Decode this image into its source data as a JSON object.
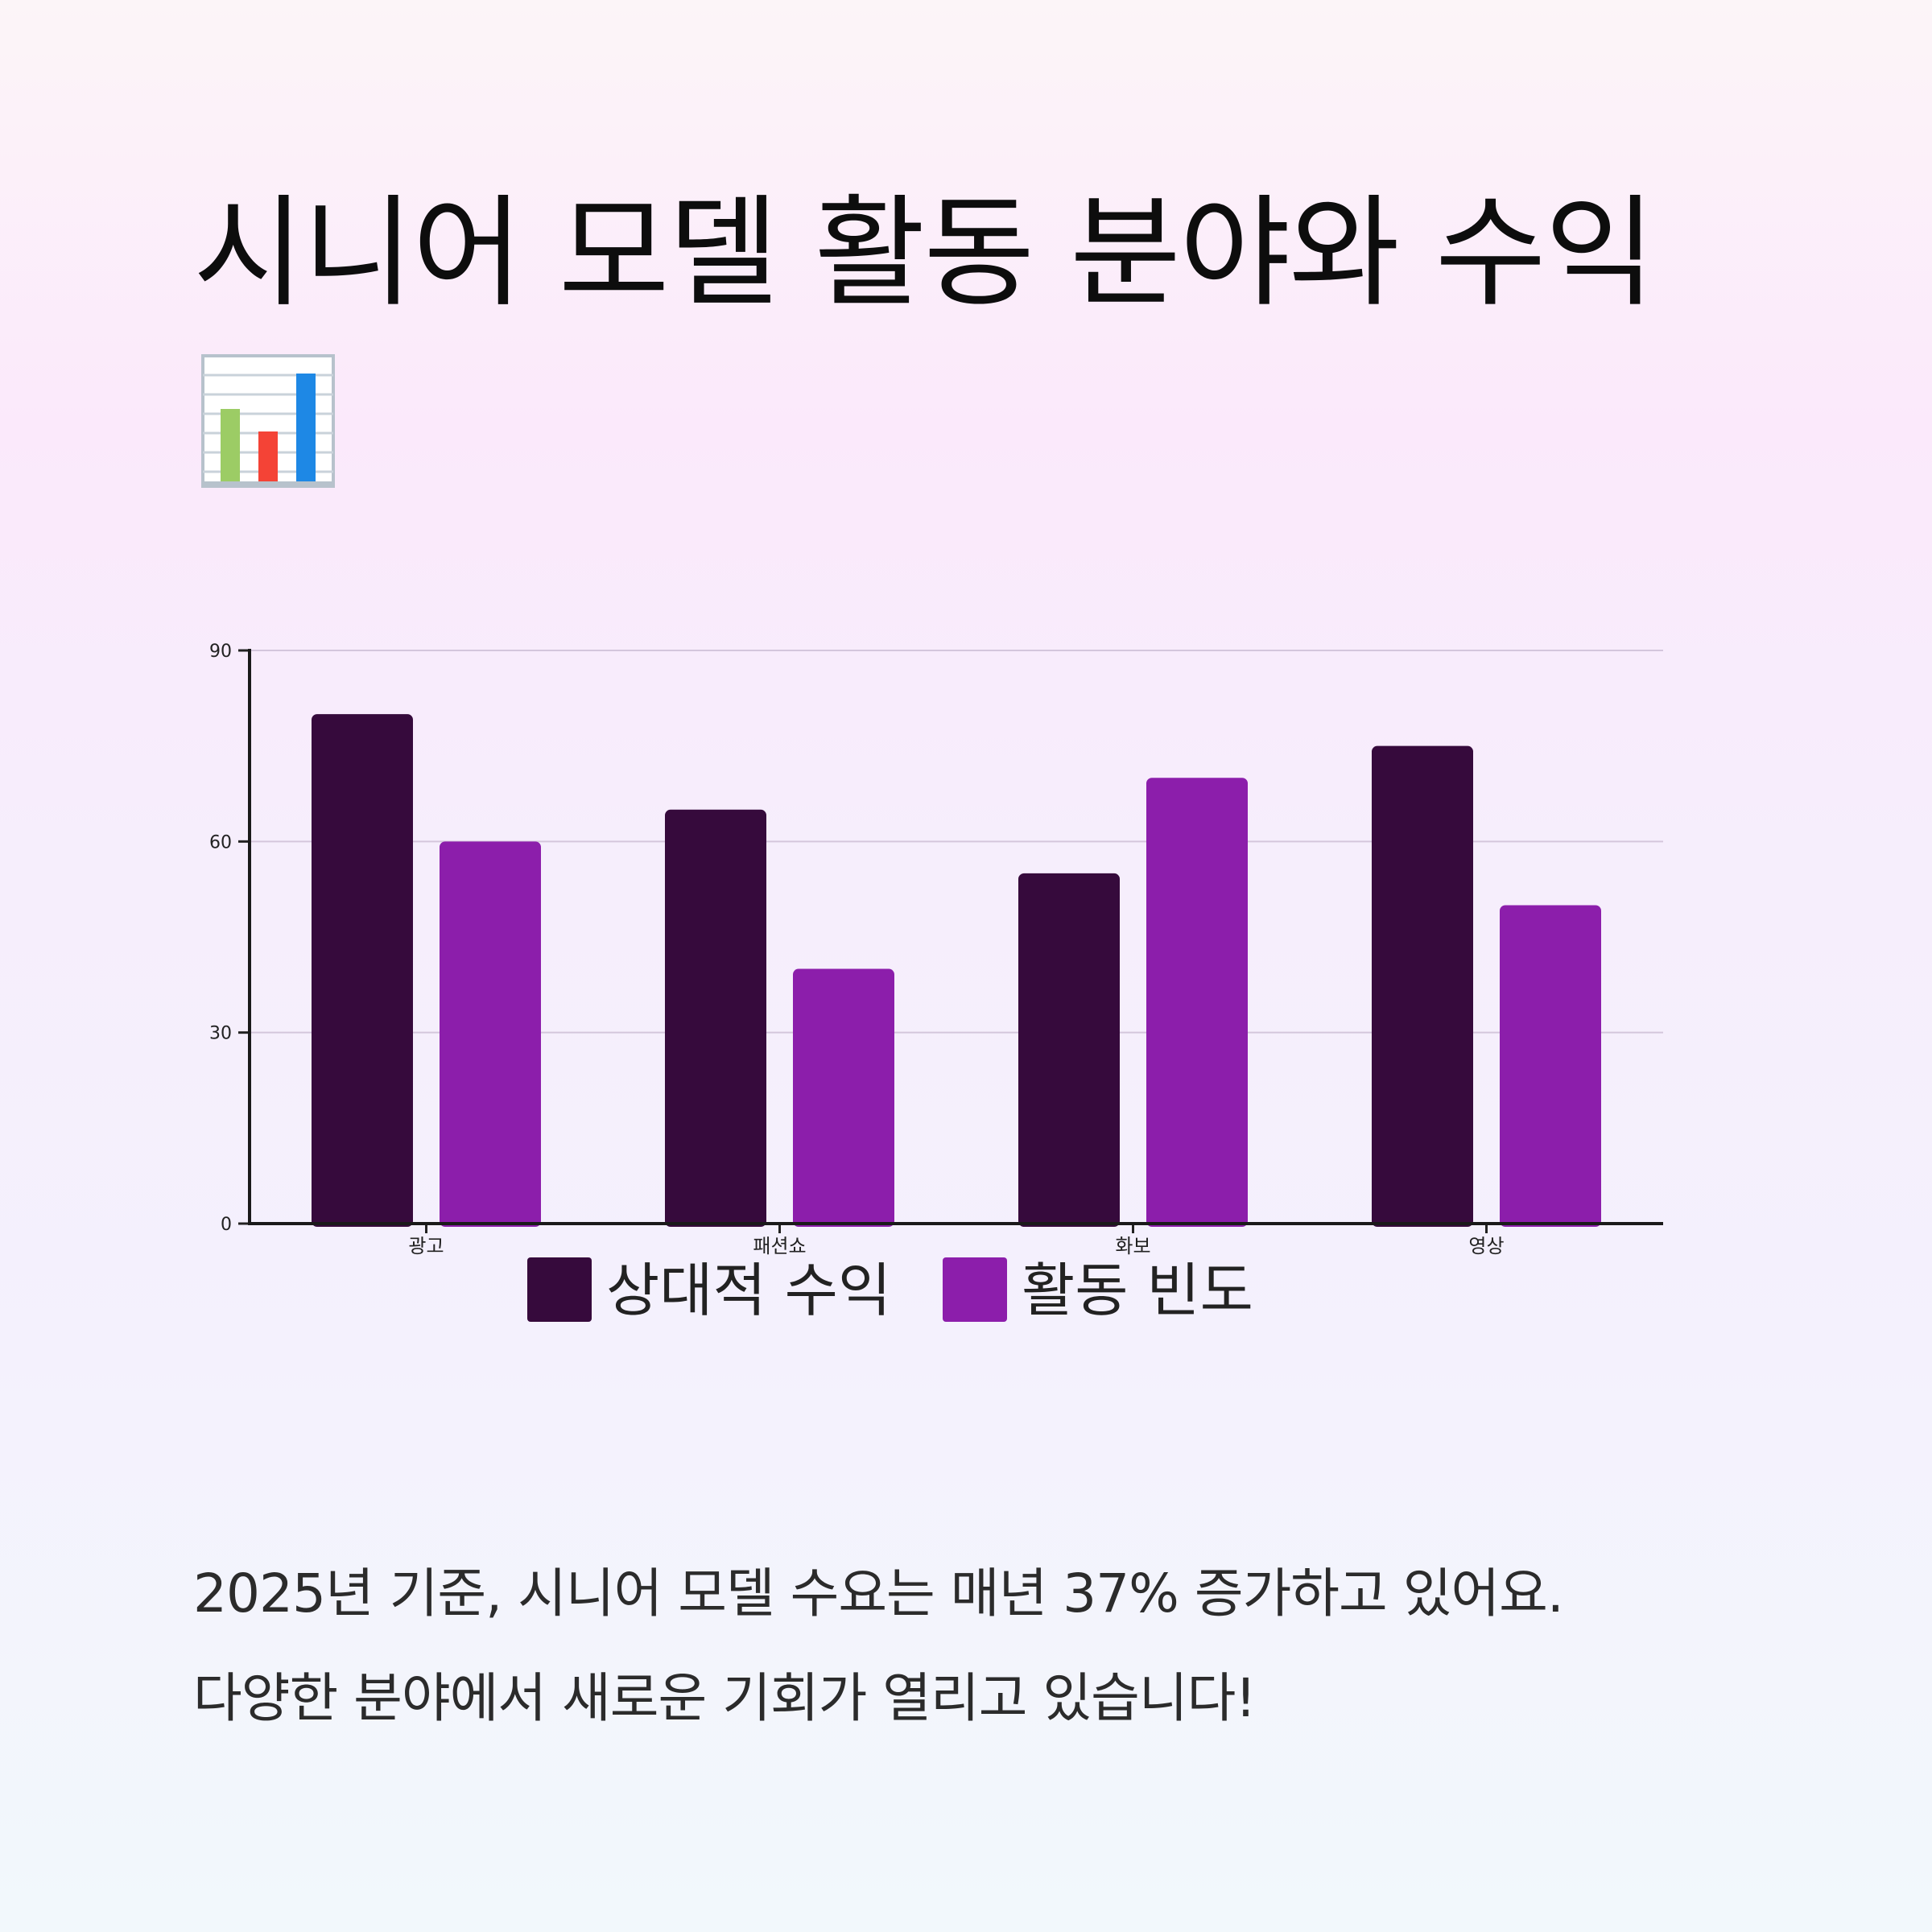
{
  "title": "시니어 모델 활동 분야와 수익",
  "title_icon": "bar-chart-icon",
  "chart_data": {
    "type": "bar",
    "categories": [
      "광고",
      "패션쇼",
      "화보",
      "영상"
    ],
    "series": [
      {
        "name": "상대적 수익",
        "values": [
          80,
          65,
          55,
          75
        ],
        "color": "#360a3c"
      },
      {
        "name": "활동 빈도",
        "values": [
          60,
          40,
          70,
          50
        ],
        "color": "#8c1eab"
      }
    ],
    "ylim": [
      0,
      90
    ],
    "yticks": [
      0,
      30,
      60,
      90
    ],
    "grid": true,
    "legend": "bottom-center"
  },
  "body": {
    "line1": "2025년 기준, 시니어 모델 수요는 매년 37% 증가하고 있어요.",
    "line2": "다양한 분야에서 새로운 기회가 열리고 있습니다!"
  }
}
